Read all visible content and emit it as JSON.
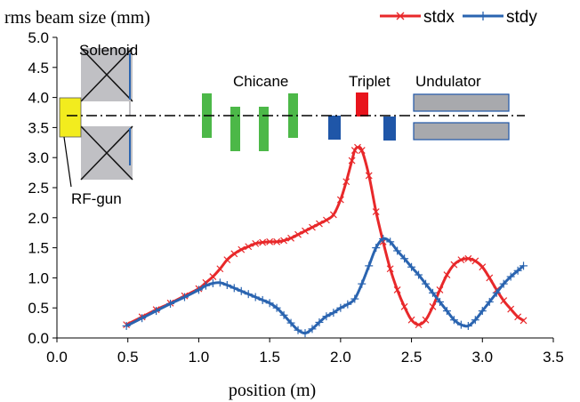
{
  "chart_data": {
    "type": "line",
    "ylabel": "rms beam size (mm)",
    "xlabel": "position (m)",
    "xlim": [
      0.0,
      3.5
    ],
    "ylim": [
      0.0,
      5.0
    ],
    "x_ticks": [
      0.0,
      0.5,
      1.0,
      1.5,
      2.0,
      2.5,
      3.0,
      3.5
    ],
    "x_tick_labels": [
      "0.0",
      "0.5",
      "1.0",
      "1.5",
      "2.0",
      "2.5",
      "3.0",
      "3.5"
    ],
    "y_ticks": [
      0.0,
      0.5,
      1.0,
      1.5,
      2.0,
      2.5,
      3.0,
      3.5,
      4.0,
      4.5,
      5.0
    ],
    "y_tick_labels": [
      "0.0",
      "0.5",
      "1.0",
      "1.5",
      "2.0",
      "2.5",
      "3.0",
      "3.5",
      "4.0",
      "4.5",
      "5.0"
    ],
    "grid": false,
    "legend_position": "top-right",
    "series": [
      {
        "name": "stdx",
        "color": "#e8282a",
        "marker": "x",
        "x": [
          0.49,
          0.6,
          0.7,
          0.8,
          0.9,
          1.0,
          1.05,
          1.1,
          1.15,
          1.2,
          1.25,
          1.3,
          1.35,
          1.4,
          1.45,
          1.5,
          1.55,
          1.6,
          1.65,
          1.7,
          1.75,
          1.8,
          1.85,
          1.9,
          1.95,
          2.0,
          2.04,
          2.08,
          2.1,
          2.12,
          2.15,
          2.2,
          2.25,
          2.3,
          2.35,
          2.4,
          2.45,
          2.5,
          2.55,
          2.6,
          2.65,
          2.7,
          2.75,
          2.8,
          2.85,
          2.9,
          2.95,
          3.0,
          3.05,
          3.1,
          3.15,
          3.2,
          3.25,
          3.29
        ],
        "values": [
          0.22,
          0.35,
          0.47,
          0.58,
          0.7,
          0.82,
          0.92,
          1.02,
          1.15,
          1.3,
          1.4,
          1.47,
          1.52,
          1.57,
          1.59,
          1.6,
          1.6,
          1.62,
          1.66,
          1.72,
          1.78,
          1.84,
          1.9,
          1.96,
          2.05,
          2.3,
          2.6,
          2.95,
          3.12,
          3.17,
          3.12,
          2.7,
          2.1,
          1.6,
          1.15,
          0.8,
          0.52,
          0.3,
          0.22,
          0.3,
          0.52,
          0.8,
          1.05,
          1.22,
          1.3,
          1.32,
          1.28,
          1.18,
          1.0,
          0.8,
          0.62,
          0.48,
          0.35,
          0.29
        ]
      },
      {
        "name": "stdy",
        "color": "#2a64b0",
        "marker": "+",
        "x": [
          0.49,
          0.6,
          0.7,
          0.8,
          0.9,
          1.0,
          1.05,
          1.1,
          1.15,
          1.2,
          1.25,
          1.3,
          1.35,
          1.4,
          1.45,
          1.5,
          1.55,
          1.6,
          1.65,
          1.7,
          1.75,
          1.8,
          1.85,
          1.9,
          1.95,
          2.0,
          2.05,
          2.1,
          2.15,
          2.2,
          2.25,
          2.3,
          2.35,
          2.4,
          2.45,
          2.5,
          2.55,
          2.6,
          2.65,
          2.7,
          2.75,
          2.8,
          2.85,
          2.9,
          2.95,
          3.0,
          3.05,
          3.1,
          3.15,
          3.2,
          3.25,
          3.29
        ],
        "values": [
          0.2,
          0.33,
          0.45,
          0.57,
          0.68,
          0.8,
          0.87,
          0.91,
          0.92,
          0.88,
          0.83,
          0.78,
          0.73,
          0.68,
          0.63,
          0.58,
          0.5,
          0.38,
          0.25,
          0.13,
          0.08,
          0.15,
          0.26,
          0.36,
          0.42,
          0.5,
          0.56,
          0.65,
          0.9,
          1.2,
          1.5,
          1.65,
          1.6,
          1.45,
          1.32,
          1.18,
          1.05,
          0.9,
          0.75,
          0.6,
          0.45,
          0.3,
          0.22,
          0.2,
          0.3,
          0.45,
          0.6,
          0.75,
          0.9,
          1.02,
          1.12,
          1.2
        ]
      }
    ],
    "annotations": {
      "solenoid": "Solenoid",
      "chicane": "Chicane",
      "triplet": "Triplet",
      "undulator": "Undulator",
      "rfgun": "RF-gun"
    },
    "colors": {
      "rfgun": "#f2ec1e",
      "chicane": "#4cb848",
      "triplet_up": "#e8141c",
      "triplet_down": "#1f56a8",
      "undulator": "#a8a9ad",
      "solenoid": "#c0c0c4"
    }
  }
}
